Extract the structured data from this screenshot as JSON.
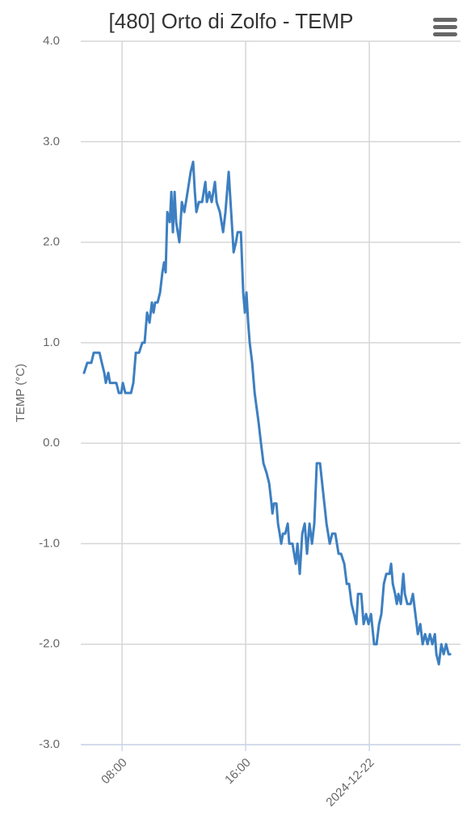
{
  "chart_data": {
    "type": "line",
    "title": "[480] Orto di Zolfo - TEMP",
    "y_label": "TEMP (°C)",
    "ylim": [
      -3,
      4
    ],
    "yticks": [
      {
        "value": 4,
        "label": "4.0"
      },
      {
        "value": 3,
        "label": "3.0"
      },
      {
        "value": 2,
        "label": "2.0"
      },
      {
        "value": 1,
        "label": "1.0"
      },
      {
        "value": 0,
        "label": "0.0"
      },
      {
        "value": -1,
        "label": "-1.0"
      },
      {
        "value": -2,
        "label": "-2.0"
      },
      {
        "value": -3,
        "label": "-3.0"
      }
    ],
    "xlim": [
      5.33,
      29.9
    ],
    "xticks": [
      {
        "value": 8,
        "label": "08:00"
      },
      {
        "value": 16,
        "label": "16:00"
      },
      {
        "value": 24,
        "label": "2024-12-22"
      }
    ],
    "grid": true,
    "series": [
      {
        "name": "TEMP",
        "color": "#3d7fc1",
        "x": [
          5.54,
          5.75,
          6.01,
          6.17,
          6.54,
          6.69,
          6.85,
          6.95,
          7.11,
          7.22,
          7.63,
          7.79,
          7.95,
          8.05,
          8.21,
          8.58,
          8.73,
          8.89,
          9.1,
          9.31,
          9.46,
          9.62,
          9.78,
          9.93,
          10.04,
          10.14,
          10.3,
          10.46,
          10.61,
          10.72,
          10.82,
          10.93,
          11.09,
          11.19,
          11.29,
          11.4,
          11.5,
          11.71,
          11.87,
          12.03,
          12.24,
          12.44,
          12.6,
          12.71,
          12.81,
          12.97,
          13.18,
          13.39,
          13.49,
          13.65,
          13.8,
          14.01,
          14.12,
          14.33,
          14.54,
          14.69,
          14.9,
          15.06,
          15.22,
          15.37,
          15.48,
          15.69,
          15.84,
          15.95,
          16.05,
          16.16,
          16.26,
          16.42,
          16.58,
          16.84,
          16.99,
          17.15,
          17.36,
          17.52,
          17.67,
          17.73,
          17.83,
          17.99,
          18.09,
          18.2,
          18.3,
          18.41,
          18.56,
          18.72,
          18.82,
          19.03,
          19.24,
          19.35,
          19.5,
          19.66,
          19.82,
          19.97,
          20.13,
          20.29,
          20.44,
          20.6,
          20.81,
          21.02,
          21.23,
          21.44,
          21.6,
          21.8,
          22.01,
          22.17,
          22.38,
          22.54,
          22.69,
          22.85,
          23.01,
          23.16,
          23.27,
          23.48,
          23.63,
          23.79,
          23.95,
          24.11,
          24.31,
          24.47,
          24.63,
          24.78,
          24.94,
          25.1,
          25.31,
          25.41,
          25.52,
          25.67,
          25.78,
          25.88,
          26.04,
          26.2,
          26.3,
          26.46,
          26.67,
          26.82,
          26.98,
          27.14,
          27.3,
          27.45,
          27.61,
          27.77,
          27.92,
          28.08,
          28.24,
          28.34,
          28.5,
          28.66,
          28.81,
          28.97,
          29.13,
          29.23
        ],
        "values": [
          0.7,
          0.8,
          0.8,
          0.9,
          0.9,
          0.8,
          0.7,
          0.6,
          0.7,
          0.6,
          0.6,
          0.5,
          0.5,
          0.6,
          0.5,
          0.5,
          0.6,
          0.9,
          0.9,
          1.0,
          1.0,
          1.3,
          1.2,
          1.4,
          1.3,
          1.4,
          1.4,
          1.5,
          1.7,
          1.8,
          1.7,
          2.3,
          2.2,
          2.5,
          2.1,
          2.5,
          2.2,
          2.0,
          2.4,
          2.3,
          2.5,
          2.7,
          2.8,
          2.5,
          2.3,
          2.4,
          2.4,
          2.6,
          2.4,
          2.5,
          2.4,
          2.6,
          2.4,
          2.3,
          2.1,
          2.3,
          2.7,
          2.3,
          1.9,
          2.0,
          2.1,
          2.1,
          1.5,
          1.3,
          1.5,
          1.2,
          1.0,
          0.8,
          0.5,
          0.2,
          0.0,
          -0.2,
          -0.3,
          -0.4,
          -0.6,
          -0.7,
          -0.6,
          -0.6,
          -0.8,
          -0.9,
          -1.0,
          -0.9,
          -0.9,
          -0.8,
          -1.0,
          -1.0,
          -1.2,
          -1.0,
          -1.3,
          -0.9,
          -0.8,
          -1.1,
          -0.8,
          -1.0,
          -0.8,
          -0.2,
          -0.2,
          -0.5,
          -0.8,
          -1.0,
          -0.9,
          -0.9,
          -1.1,
          -1.1,
          -1.2,
          -1.4,
          -1.4,
          -1.6,
          -1.7,
          -1.8,
          -1.5,
          -1.5,
          -1.8,
          -1.7,
          -1.8,
          -1.7,
          -2.0,
          -2.0,
          -1.8,
          -1.7,
          -1.4,
          -1.3,
          -1.3,
          -1.2,
          -1.4,
          -1.5,
          -1.6,
          -1.5,
          -1.6,
          -1.3,
          -1.5,
          -1.6,
          -1.6,
          -1.5,
          -1.7,
          -1.9,
          -1.8,
          -2.0,
          -1.9,
          -2.0,
          -1.9,
          -2.0,
          -1.9,
          -2.1,
          -2.2,
          -2.0,
          -2.1,
          -2.0,
          -2.1,
          -2.1
        ]
      }
    ]
  }
}
